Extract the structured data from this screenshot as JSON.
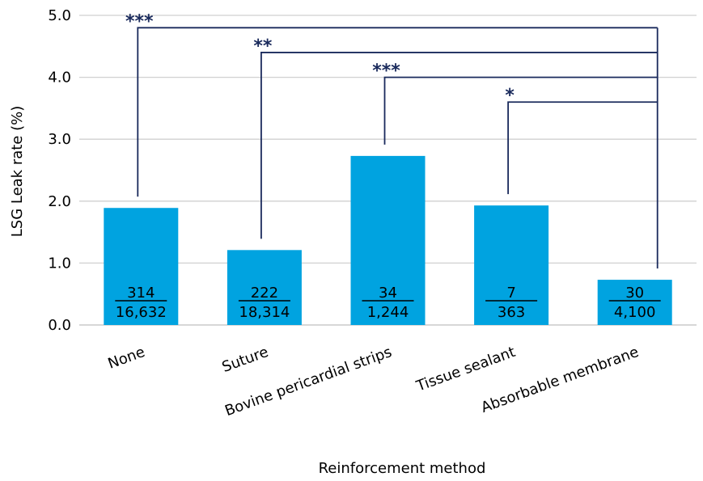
{
  "chart_data": {
    "type": "bar",
    "xlabel": "Reinforcement method",
    "ylabel": "LSG Leak rate (%)",
    "ylim": [
      0,
      5
    ],
    "yticks": [
      "0.0",
      "1.0",
      "2.0",
      "3.0",
      "4.0",
      "5.0"
    ],
    "grid": true,
    "bar_color": "#00a3e0",
    "bracket_color": "#1a2a5c",
    "categories": [
      "None",
      "Suture",
      "Bovine pericardial strips",
      "Tissue sealant",
      "Absorbable membrane"
    ],
    "values": [
      1.89,
      1.21,
      2.73,
      1.93,
      0.73
    ],
    "fractions": [
      {
        "numerator": "314",
        "denominator": "16,632"
      },
      {
        "numerator": "222",
        "denominator": "18,314"
      },
      {
        "numerator": "34",
        "denominator": "1,244"
      },
      {
        "numerator": "7",
        "denominator": "363"
      },
      {
        "numerator": "30",
        "denominator": "4,100"
      }
    ],
    "comparisons": [
      {
        "from": 0,
        "to": 4,
        "label": "***",
        "level": 4.8
      },
      {
        "from": 1,
        "to": 4,
        "label": "**",
        "level": 4.4
      },
      {
        "from": 2,
        "to": 4,
        "label": "***",
        "level": 4.0
      },
      {
        "from": 3,
        "to": 4,
        "label": "*",
        "level": 3.6
      }
    ]
  }
}
